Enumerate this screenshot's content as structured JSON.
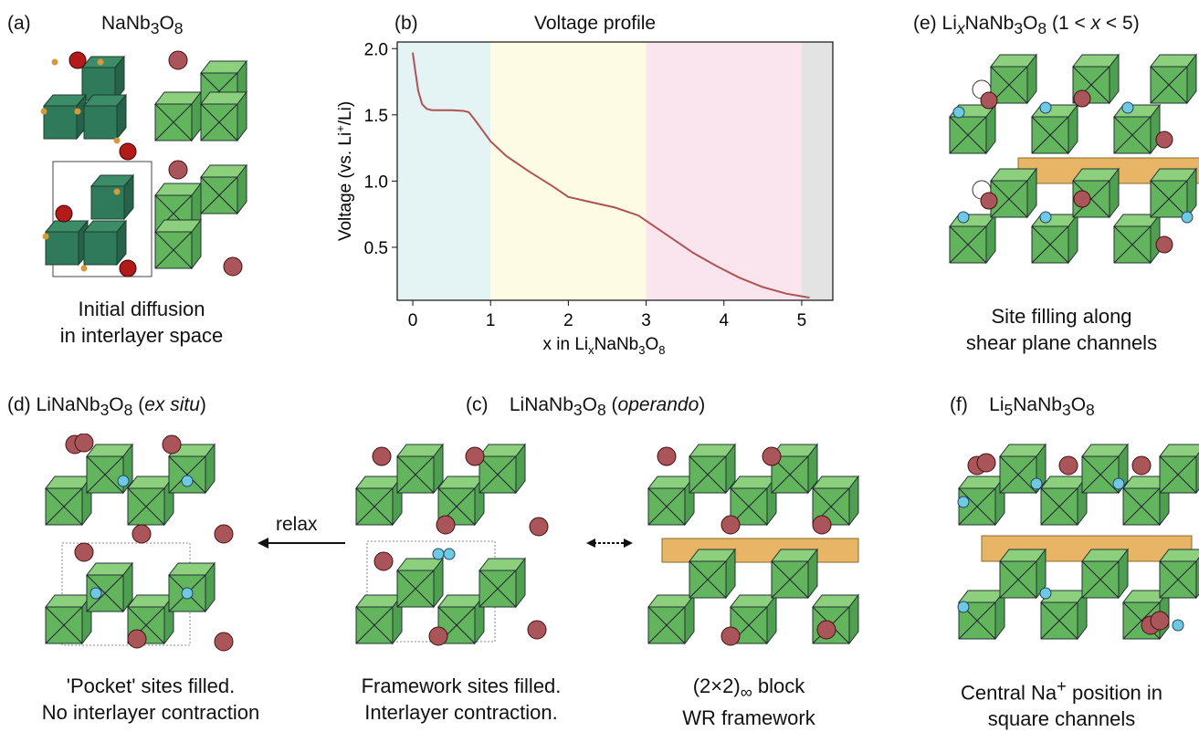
{
  "panels": {
    "a": {
      "letter": "(a)",
      "formula_parts": [
        "NaNb",
        "3",
        "O",
        "8"
      ],
      "caption": [
        "Initial diffusion",
        "in interlayer space"
      ]
    },
    "b": {
      "letter": "(b)",
      "title": "Voltage profile"
    },
    "e": {
      "letter": "(e)",
      "formula_parts": [
        "Li",
        "x",
        "NaNb",
        "3",
        "O",
        "8",
        " (1 < ",
        "x",
        " < 5)"
      ],
      "caption": [
        "Site filling along",
        "shear plane channels"
      ]
    },
    "d": {
      "letter": "(d)",
      "formula_parts": [
        "LiNaNb",
        "3",
        "O",
        "8",
        " (",
        "ex situ",
        ")"
      ],
      "caption": [
        "'Pocket' sites filled.",
        "No interlayer contraction"
      ]
    },
    "c": {
      "letter": "(c)",
      "formula_parts": [
        "LiNaNb",
        "3",
        "O",
        "8",
        " (",
        "operando",
        ")"
      ],
      "caption_left": [
        "Framework sites filled.",
        "Interlayer contraction."
      ],
      "caption_right": [
        "(2×2)",
        "∞",
        " block",
        "WR framework"
      ]
    },
    "f": {
      "letter": "(f)",
      "formula_parts": [
        "Li",
        "5",
        "NaNb",
        "3",
        "O",
        "8"
      ],
      "caption": [
        "Central Na",
        "+",
        " position in",
        "square channels"
      ]
    },
    "relax_label": "relax"
  },
  "chart_data": {
    "type": "line",
    "title": "Voltage profile",
    "xlabel_parts": [
      "x in Li",
      "x",
      "NaNb",
      "3",
      "O",
      "8"
    ],
    "ylabel_parts": [
      "Voltage (vs. Li",
      "+",
      "/Li)"
    ],
    "xlim": [
      -0.2,
      5.4
    ],
    "ylim": [
      0.1,
      2.05
    ],
    "xticks": [
      0,
      1,
      2,
      3,
      4,
      5
    ],
    "xtick_labels": [
      "0",
      "1",
      "2",
      "3",
      "4",
      "5"
    ],
    "yticks": [
      0.5,
      1.0,
      1.5,
      2.0
    ],
    "ytick_labels": [
      "0.5",
      "1.0",
      "1.5",
      "2.0"
    ],
    "regions": [
      {
        "from": -0.2,
        "to": 1,
        "color": "#e4f3f3"
      },
      {
        "from": 1,
        "to": 3,
        "color": "#fdfbe4"
      },
      {
        "from": 3,
        "to": 5,
        "color": "#fae4ee"
      },
      {
        "from": 5,
        "to": 5.4,
        "color": "#e3e3e3"
      }
    ],
    "series": [
      {
        "color": "#b05353",
        "x": [
          0.0,
          0.03,
          0.07,
          0.12,
          0.18,
          0.25,
          0.35,
          0.5,
          0.65,
          0.72,
          0.8,
          0.9,
          1.0,
          1.2,
          1.5,
          1.8,
          2.0,
          2.3,
          2.6,
          2.9,
          3.0,
          3.3,
          3.6,
          3.9,
          4.2,
          4.5,
          4.8,
          5.0,
          5.1
        ],
        "y": [
          1.97,
          1.84,
          1.68,
          1.58,
          1.545,
          1.535,
          1.535,
          1.535,
          1.53,
          1.52,
          1.46,
          1.38,
          1.3,
          1.19,
          1.07,
          0.96,
          0.88,
          0.84,
          0.8,
          0.74,
          0.7,
          0.58,
          0.46,
          0.36,
          0.27,
          0.2,
          0.15,
          0.13,
          0.12
        ]
      }
    ]
  },
  "colors": {
    "octahedron_dark": "#2f7a5a",
    "octahedron_light": "#62b55c",
    "sodium": "#a9555a",
    "lithium": "#70c9e2",
    "oxygen": "#d59a3b",
    "niobium_site": "#b31a1a",
    "block_highlight": "#d59a3b"
  }
}
